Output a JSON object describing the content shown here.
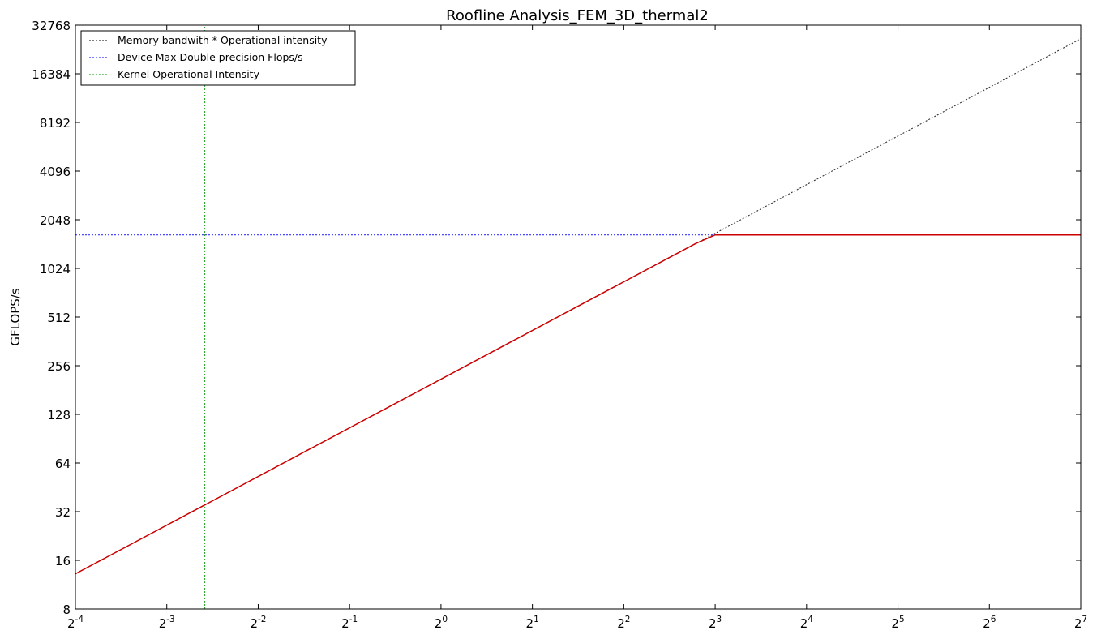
{
  "chart_data": {
    "type": "line",
    "title": "Roofline Analysis_FEM_3D_thermal2",
    "xlabel": "",
    "ylabel": "GFLOPS/s",
    "xscale": "log2",
    "yscale": "log2",
    "xlim": [
      0.0625,
      128
    ],
    "ylim": [
      8,
      32768
    ],
    "x_ticks": [
      {
        "base": "2",
        "exp": "-4"
      },
      {
        "base": "2",
        "exp": "-3"
      },
      {
        "base": "2",
        "exp": "-2"
      },
      {
        "base": "2",
        "exp": "-1"
      },
      {
        "base": "2",
        "exp": "0"
      },
      {
        "base": "2",
        "exp": "1"
      },
      {
        "base": "2",
        "exp": "2"
      },
      {
        "base": "2",
        "exp": "3"
      },
      {
        "base": "2",
        "exp": "4"
      },
      {
        "base": "2",
        "exp": "5"
      },
      {
        "base": "2",
        "exp": "6"
      },
      {
        "base": "2",
        "exp": "7"
      }
    ],
    "y_ticks": [
      "8",
      "16",
      "32",
      "64",
      "128",
      "256",
      "512",
      "1024",
      "2048",
      "4096",
      "8192",
      "16384",
      "32768"
    ],
    "legend_position": "top-left",
    "grid": false,
    "series": [
      {
        "name": "Memory bandwith * Operational intensity",
        "style": "dotted",
        "color": "#333333",
        "x": [
          0.0625,
          128
        ],
        "y": [
          13.2,
          27000
        ]
      },
      {
        "name": "Device Max Double precision Flops/s",
        "style": "dotted",
        "color": "#3333ff",
        "x": [
          0.0625,
          128
        ],
        "y": [
          1650,
          1650
        ]
      },
      {
        "name": "Kernel Operational Intensity",
        "style": "dotted",
        "color": "#33aa33",
        "x": [
          0.1667,
          0.1667
        ],
        "y": [
          8,
          32768
        ]
      },
      {
        "name": "",
        "style": "solid",
        "color": "#cc0000",
        "x": [
          0.0625,
          6.9,
          8.0,
          128
        ],
        "y": [
          13.2,
          1460,
          1650,
          1650
        ]
      }
    ]
  },
  "colors": {
    "memory_line": "#333333",
    "device_max_line": "#3333ff",
    "kernel_line": "#33aa33",
    "roofline": "#cc0000"
  }
}
